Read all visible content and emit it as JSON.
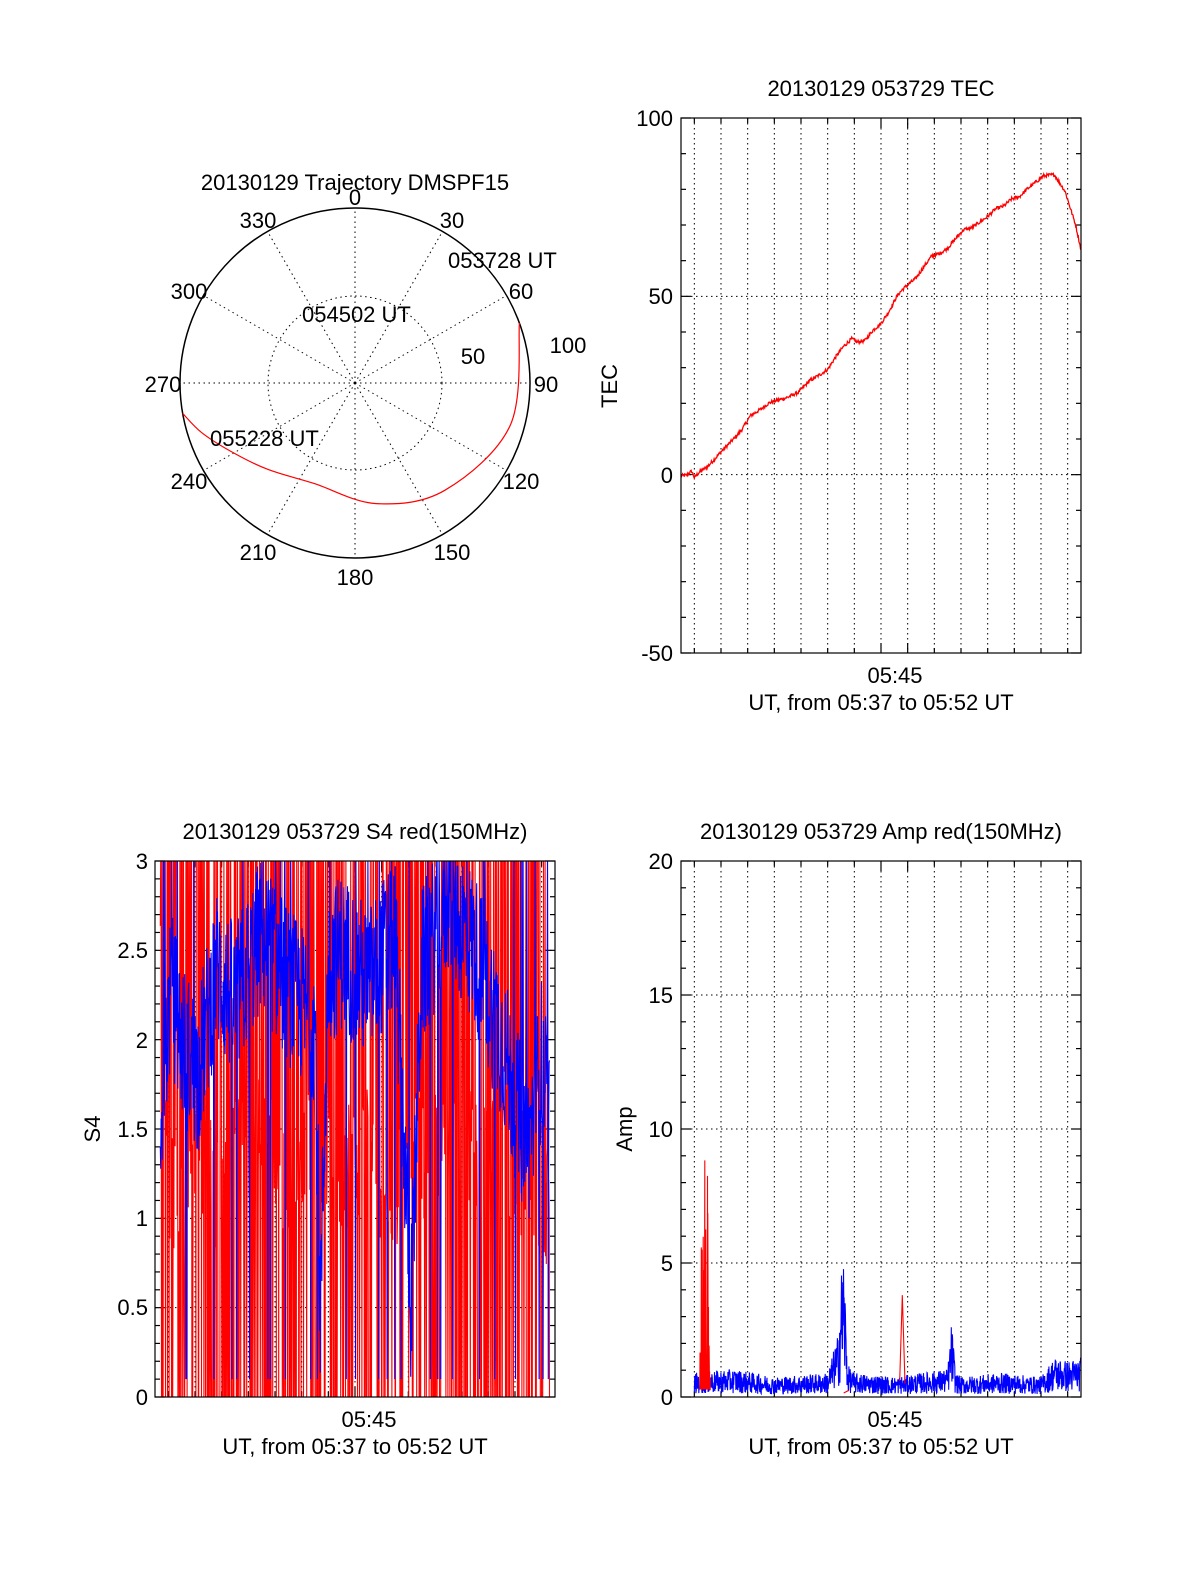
{
  "colors": {
    "red": "#ff0000",
    "blue": "#0000ff"
  },
  "time_axis": {
    "tick_label": "05:45",
    "tick_time": "05:45",
    "range_start": "05:37",
    "range_end": "05:52",
    "label": "UT, from 05:37 to 05:52 UT"
  },
  "chart_data": [
    {
      "type": "polar",
      "title": "20130129 Trajectory DMSPF15",
      "azimuth_labels": [
        "0",
        "30",
        "60",
        "90",
        "120",
        "150",
        "180",
        "210",
        "240",
        "270",
        "300",
        "330"
      ],
      "radial_labels": [
        "50",
        "100"
      ],
      "annotations": [
        "053728 UT",
        "054502 UT",
        "055228 UT"
      ],
      "series": [
        {
          "color": "#ff0000",
          "points": [
            {
              "time": "053728 UT",
              "azimuth": 70,
              "zenith": 100
            },
            {
              "azimuth": 105,
              "zenith": 92
            },
            {
              "azimuth": 140,
              "zenith": 80
            },
            {
              "azimuth": 170,
              "zenith": 70
            },
            {
              "time": "054502 UT",
              "azimuth": 202,
              "zenith": 62
            },
            {
              "azimuth": 225,
              "zenith": 70
            },
            {
              "azimuth": 240,
              "zenith": 80
            },
            {
              "azimuth": 252,
              "zenith": 92
            },
            {
              "time": "055228 UT",
              "azimuth": 260,
              "zenith": 100
            }
          ]
        }
      ]
    },
    {
      "type": "line",
      "title": "20130129 053729 TEC",
      "ylabel": "TEC",
      "xlabel": "UT, from 05:37 to 05:52 UT",
      "ylim": [
        -50,
        100
      ],
      "yticks": [
        "100",
        "50",
        "0",
        "-50"
      ],
      "grid": true,
      "series": [
        {
          "color": "#ff0000",
          "x_minutes": [
            0,
            0.2,
            0.4,
            0.5,
            0.7,
            1.0,
            1.3,
            1.6,
            2.0,
            2.3,
            2.6,
            3.0,
            3.3,
            3.6,
            4.0,
            4.4,
            4.8,
            5.2,
            5.5,
            5.8,
            6.1,
            6.4,
            6.6,
            6.9,
            7.2,
            7.5,
            7.8,
            8.1,
            8.3,
            8.5,
            8.8,
            9.1,
            9.4,
            9.7,
            10.0,
            10.3,
            10.6,
            10.9,
            11.2,
            11.5,
            11.8,
            12.1,
            12.4,
            12.7,
            13.0,
            13.3,
            13.6,
            14.0,
            14.4,
            14.8,
            15.0
          ],
          "y": [
            -0.3,
            -0.2,
            1.0,
            -0.8,
            0.8,
            2.3,
            4.7,
            7.2,
            10.2,
            12.8,
            16.5,
            18.4,
            20.1,
            20.8,
            21.7,
            23.1,
            26.2,
            28.0,
            29.5,
            33.0,
            36.0,
            38.1,
            37.2,
            37.6,
            40.5,
            42.4,
            45.8,
            50.1,
            51.9,
            53.2,
            55.0,
            58.2,
            61.3,
            62.0,
            63.5,
            66.2,
            68.7,
            69.2,
            70.8,
            72.4,
            74.5,
            75.3,
            77.3,
            78.0,
            80.2,
            82.0,
            83.8,
            84.1,
            79.5,
            70.0,
            63.0
          ]
        }
      ]
    },
    {
      "type": "line",
      "title": "20130129 053729 S4 red(150MHz)",
      "ylabel": "S4",
      "xlabel": "UT, from 05:37 to 05:52 UT",
      "ylim": [
        0,
        3
      ],
      "yticks": [
        "3",
        "2.5",
        "2",
        "1.5",
        "1",
        "0.5",
        "0"
      ],
      "grid": true,
      "series": [
        {
          "color": "#ff0000",
          "x_minutes": [
            0.2,
            0.4,
            0.7,
            1.0,
            1.6,
            2.3,
            3.0,
            4.0,
            5.0,
            6.0,
            7.0,
            8.0,
            9.0,
            10.0,
            11.0,
            12.0,
            13.0,
            14.0,
            14.8
          ],
          "y": [
            2.9,
            1.5,
            1.1,
            0.95,
            1.55,
            1.05,
            1.6,
            1.4,
            1.2,
            1.5,
            1.3,
            1.4,
            1.15,
            1.35,
            1.5,
            1.3,
            1.45,
            1.25,
            1.1
          ]
        },
        {
          "color": "#0000ff",
          "x_minutes": [
            0.2,
            0.6,
            1.0,
            1.6,
            2.3,
            3.0,
            4.0,
            5.0,
            6.0,
            6.2,
            6.5,
            7.0,
            8.0,
            9.0,
            9.6,
            10.0,
            11.0,
            12.0,
            13.0,
            13.6,
            14.0,
            14.5,
            14.8
          ],
          "y": [
            1.6,
            2.3,
            2.0,
            1.8,
            2.4,
            2.2,
            2.6,
            2.3,
            2.1,
            0.5,
            2.4,
            2.5,
            2.3,
            2.6,
            0.5,
            2.4,
            2.8,
            2.5,
            2.0,
            1.6,
            1.4,
            1.9,
            1.5
          ]
        }
      ]
    },
    {
      "type": "line",
      "title": "20130129 053729 Amp red(150MHz)",
      "ylabel": "Amp",
      "xlabel": "UT, from 05:37 to 05:52 UT",
      "ylim": [
        0,
        20
      ],
      "yticks": [
        "20",
        "15",
        "10",
        "5",
        "0"
      ],
      "grid": true,
      "series": [
        {
          "color": "#ff0000",
          "x_minutes": [
            0.7,
            0.8,
            0.85,
            0.9,
            0.95,
            1.0,
            1.05,
            1.1,
            6.2,
            8.2,
            8.3,
            8.4
          ],
          "y": [
            0.5,
            10.5,
            4.0,
            11.0,
            3.5,
            9.0,
            2.5,
            0.6,
            0.2,
            0.6,
            3.8,
            0.5
          ]
        },
        {
          "color": "#0000ff",
          "x_minutes": [
            0.5,
            2.0,
            3.5,
            5.5,
            5.9,
            6.0,
            6.1,
            6.25,
            6.5,
            8.0,
            10.0,
            10.15,
            10.3,
            10.5,
            12.0,
            13.5,
            14.0,
            14.5,
            15.0
          ],
          "y": [
            0.6,
            0.7,
            0.5,
            0.6,
            1.6,
            3.1,
            3.7,
            0.8,
            0.6,
            0.5,
            0.7,
            1.9,
            0.6,
            0.5,
            0.6,
            0.5,
            1.0,
            0.9,
            1.0
          ]
        }
      ]
    }
  ]
}
